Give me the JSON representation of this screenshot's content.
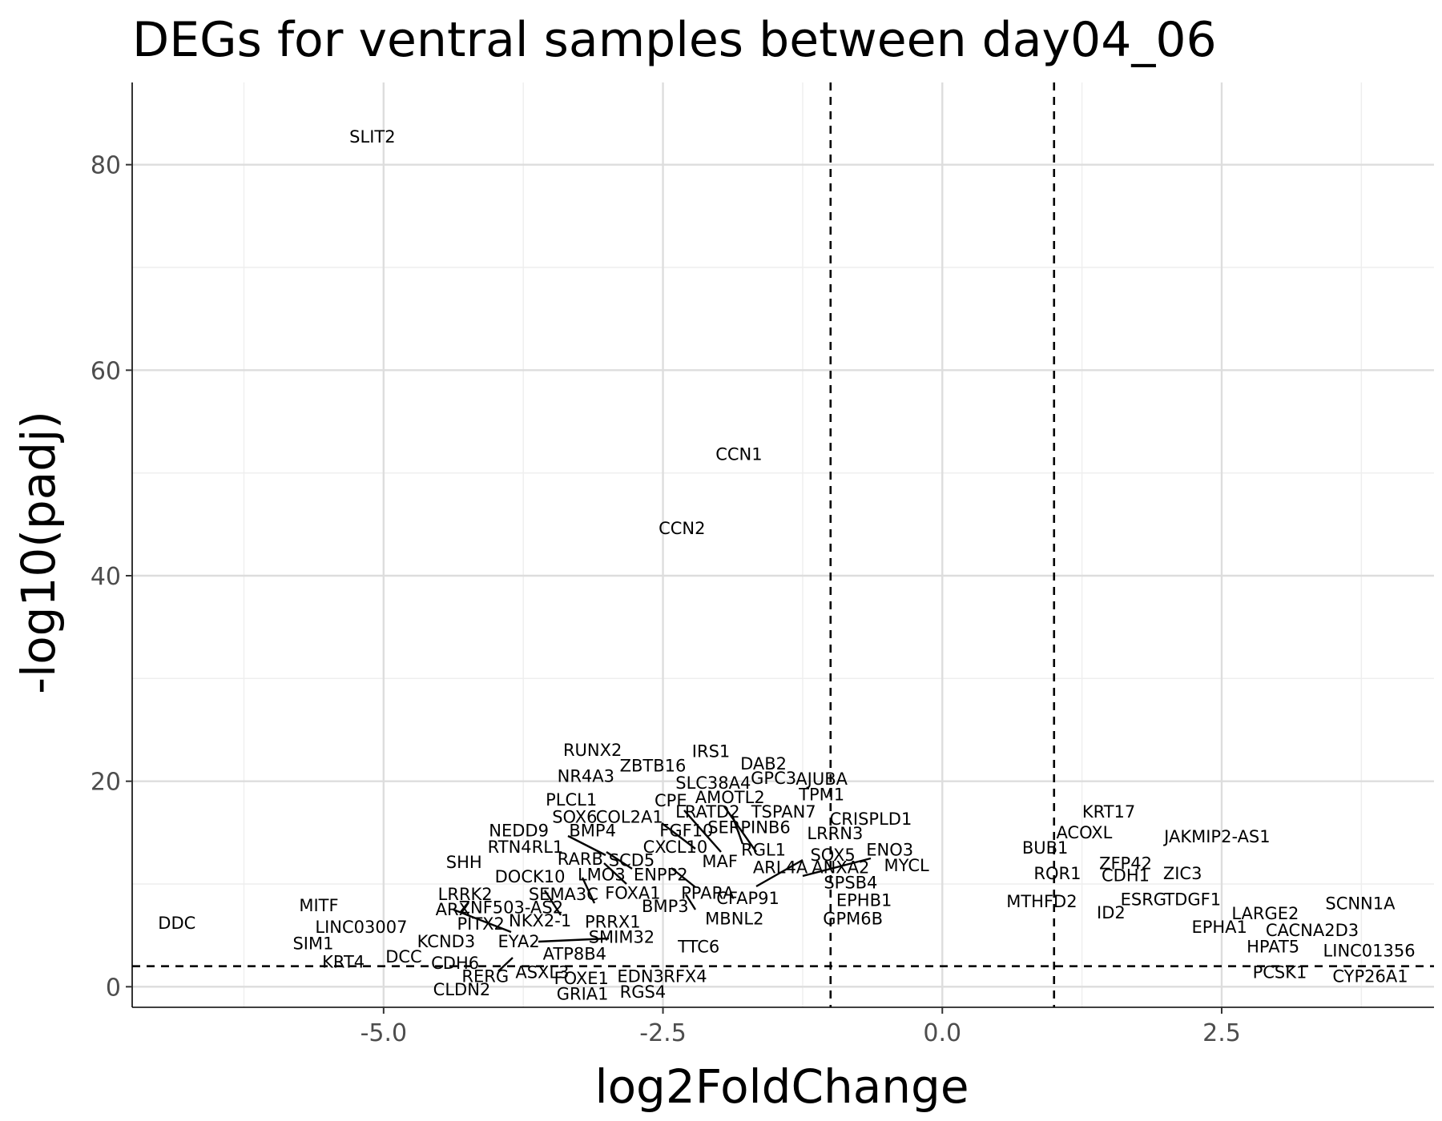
{
  "chart_data": {
    "type": "scatter",
    "title": "DEGs for ventral samples between day04_06",
    "xlabel": "log2FoldChange",
    "ylabel": "-log10(padj)",
    "xlim": [
      -7.25,
      4.4
    ],
    "ylim": [
      -2,
      88
    ],
    "xticks": [
      -5.0,
      -2.5,
      0.0,
      2.5
    ],
    "xtick_labels": [
      "-5.0",
      "-2.5",
      "0.0",
      "2.5"
    ],
    "yticks": [
      0,
      20,
      40,
      60,
      80
    ],
    "ytick_labels": [
      "0",
      "20",
      "40",
      "60",
      "80"
    ],
    "xminor": [
      -6.25,
      -3.75,
      -1.25,
      1.25,
      3.75
    ],
    "yminor": [
      10,
      30,
      50,
      70
    ],
    "grid": true,
    "thresholds": {
      "x": [
        -1.0,
        1.0
      ],
      "y": 2.0
    },
    "points": [
      {
        "label": "SLIT2",
        "x": -5.1,
        "y": 82.7
      },
      {
        "label": "CCN1",
        "x": -1.82,
        "y": 51.8
      },
      {
        "label": "CCN2",
        "x": -2.33,
        "y": 44.6
      },
      {
        "label": "RUNX2",
        "x": -3.13,
        "y": 23.0
      },
      {
        "label": "IRS1",
        "x": -2.07,
        "y": 22.9
      },
      {
        "label": "DAB2",
        "x": -1.6,
        "y": 21.7
      },
      {
        "label": "ZBTB16",
        "x": -2.59,
        "y": 21.5
      },
      {
        "label": "NR4A3",
        "x": -3.19,
        "y": 20.5
      },
      {
        "label": "GPC3",
        "x": -1.51,
        "y": 20.3
      },
      {
        "label": "AJUBA",
        "x": -1.08,
        "y": 20.2
      },
      {
        "label": "SLC38A4",
        "x": -2.05,
        "y": 19.8
      },
      {
        "label": "TPM1",
        "x": -1.08,
        "y": 18.7
      },
      {
        "label": "AMOTL2",
        "x": -1.9,
        "y": 18.4
      },
      {
        "label": "PLCL1",
        "x": -3.32,
        "y": 18.2
      },
      {
        "label": "CPE",
        "x": -2.43,
        "y": 18.1
      },
      {
        "label": "LRATD2",
        "x": -2.1,
        "y": 17.0
      },
      {
        "label": "TSPAN7",
        "x": -1.42,
        "y": 17.0
      },
      {
        "label": "SOX6",
        "x": -3.29,
        "y": 16.5
      },
      {
        "label": "COL2A1",
        "x": -2.8,
        "y": 16.5
      },
      {
        "label": "CRISPLD1",
        "x": -0.64,
        "y": 16.3
      },
      {
        "label": "SERPINB6",
        "x": -1.73,
        "y": 15.5
      },
      {
        "label": "FGF10",
        "x": -2.29,
        "y": 15.2
      },
      {
        "label": "NEDD9",
        "x": -3.79,
        "y": 15.2
      },
      {
        "label": "BMP4",
        "x": -3.13,
        "y": 15.2
      },
      {
        "label": "LRRN3",
        "x": -0.96,
        "y": 14.9
      },
      {
        "label": "CXCL10",
        "x": -2.39,
        "y": 13.6
      },
      {
        "label": "RTN4RL1",
        "x": -3.73,
        "y": 13.6
      },
      {
        "label": "RGL1",
        "x": -1.6,
        "y": 13.3
      },
      {
        "label": "ENO3",
        "x": -0.47,
        "y": 13.3
      },
      {
        "label": "SOX5",
        "x": -0.98,
        "y": 12.8
      },
      {
        "label": "RARB",
        "x": -3.24,
        "y": 12.4
      },
      {
        "label": "SCD5",
        "x": -2.78,
        "y": 12.3
      },
      {
        "label": "MAF",
        "x": -1.99,
        "y": 12.2
      },
      {
        "label": "SHH",
        "x": -4.28,
        "y": 12.1
      },
      {
        "label": "MYCL",
        "x": -0.32,
        "y": 11.8
      },
      {
        "label": "ARL4A",
        "x": -1.45,
        "y": 11.6
      },
      {
        "label": "ANXA2",
        "x": -0.91,
        "y": 11.6
      },
      {
        "label": "LMO3",
        "x": -3.05,
        "y": 10.9
      },
      {
        "label": "ENPP2",
        "x": -2.52,
        "y": 10.9
      },
      {
        "label": "DOCK10",
        "x": -3.69,
        "y": 10.7
      },
      {
        "label": "SPSB4",
        "x": -0.82,
        "y": 10.1
      },
      {
        "label": "SEMA3C",
        "x": -3.39,
        "y": 9.0
      },
      {
        "label": "FOXA1",
        "x": -2.77,
        "y": 9.1
      },
      {
        "label": "PPARA",
        "x": -2.1,
        "y": 9.1
      },
      {
        "label": "LRRK2",
        "x": -4.27,
        "y": 9.0
      },
      {
        "label": "CFAP91",
        "x": -1.74,
        "y": 8.6
      },
      {
        "label": "EPHB1",
        "x": -0.7,
        "y": 8.4
      },
      {
        "label": "MITF",
        "x": -5.58,
        "y": 7.9
      },
      {
        "label": "BMP3",
        "x": -2.48,
        "y": 7.8
      },
      {
        "label": "ARX",
        "x": -4.38,
        "y": 7.5
      },
      {
        "label": "ZNF503-AS2",
        "x": -3.86,
        "y": 7.7
      },
      {
        "label": "MBNL2",
        "x": -1.86,
        "y": 6.6
      },
      {
        "label": "GPM6B",
        "x": -0.8,
        "y": 6.6
      },
      {
        "label": "DDC",
        "x": -6.85,
        "y": 6.2
      },
      {
        "label": "PITX2",
        "x": -4.13,
        "y": 6.1
      },
      {
        "label": "NKX2-1",
        "x": -3.6,
        "y": 6.4
      },
      {
        "label": "PRRX1",
        "x": -2.95,
        "y": 6.3
      },
      {
        "label": "LINC03007",
        "x": -5.2,
        "y": 5.8
      },
      {
        "label": "SMIM32",
        "x": -2.87,
        "y": 4.8
      },
      {
        "label": "EYA2",
        "x": -3.79,
        "y": 4.4
      },
      {
        "label": "KCND3",
        "x": -4.44,
        "y": 4.4
      },
      {
        "label": "SIM1",
        "x": -5.63,
        "y": 4.2
      },
      {
        "label": "TTC6",
        "x": -2.18,
        "y": 3.9
      },
      {
        "label": "ATP8B4",
        "x": -3.29,
        "y": 3.2
      },
      {
        "label": "DCC",
        "x": -4.82,
        "y": 2.9
      },
      {
        "label": "KRT4",
        "x": -5.36,
        "y": 2.4
      },
      {
        "label": "CDH6",
        "x": -4.36,
        "y": 2.3
      },
      {
        "label": "ASXL3",
        "x": -3.58,
        "y": 1.4
      },
      {
        "label": "RERG",
        "x": -4.09,
        "y": 1.0
      },
      {
        "label": "FOXE1",
        "x": -3.23,
        "y": 0.8
      },
      {
        "label": "EDN3",
        "x": -2.7,
        "y": 1.0
      },
      {
        "label": "RFX4",
        "x": -2.3,
        "y": 1.0
      },
      {
        "label": "CLDN2",
        "x": -4.3,
        "y": -0.3
      },
      {
        "label": "GRIA1",
        "x": -3.22,
        "y": -0.7
      },
      {
        "label": "RGS4",
        "x": -2.68,
        "y": -0.5
      },
      {
        "label": "KRT17",
        "x": 1.49,
        "y": 17.0
      },
      {
        "label": "ACOXL",
        "x": 1.27,
        "y": 15.0
      },
      {
        "label": "JAKMIP2-AS1",
        "x": 2.46,
        "y": 14.6
      },
      {
        "label": "BUB1",
        "x": 0.92,
        "y": 13.5
      },
      {
        "label": "ZFP42",
        "x": 1.64,
        "y": 12.0
      },
      {
        "label": "ROR1",
        "x": 1.03,
        "y": 11.0
      },
      {
        "label": "CDH1",
        "x": 1.64,
        "y": 10.8
      },
      {
        "label": "ZIC3",
        "x": 2.15,
        "y": 11.0
      },
      {
        "label": "MTHFD2",
        "x": 0.89,
        "y": 8.3
      },
      {
        "label": "ESRG",
        "x": 1.8,
        "y": 8.5
      },
      {
        "label": "TDGF1",
        "x": 2.24,
        "y": 8.5
      },
      {
        "label": "SCNN1A",
        "x": 3.74,
        "y": 8.1
      },
      {
        "label": "ID2",
        "x": 1.51,
        "y": 7.2
      },
      {
        "label": "LARGE2",
        "x": 2.89,
        "y": 7.1
      },
      {
        "label": "EPHA1",
        "x": 2.48,
        "y": 5.8
      },
      {
        "label": "CACNA2D3",
        "x": 3.31,
        "y": 5.5
      },
      {
        "label": "HPAT5",
        "x": 2.96,
        "y": 3.9
      },
      {
        "label": "LINC01356",
        "x": 3.82,
        "y": 3.5
      },
      {
        "label": "PCSK1",
        "x": 3.02,
        "y": 1.4
      },
      {
        "label": "CYP26A1",
        "x": 3.83,
        "y": 1.0
      }
    ]
  }
}
